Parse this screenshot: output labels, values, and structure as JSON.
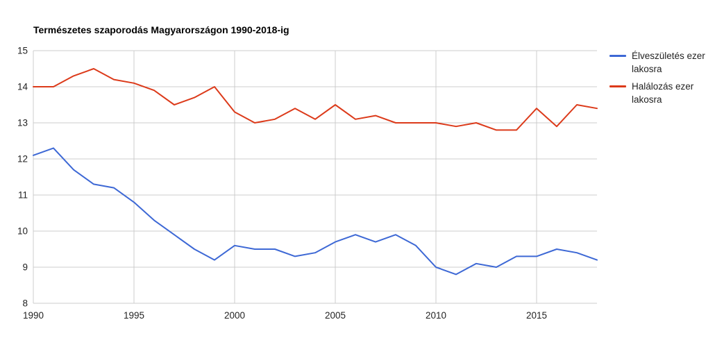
{
  "title": "Természetes szaporodás Magyarországon 1990-2018-ig",
  "colors": {
    "grid": "#cccccc",
    "text": "#222222",
    "title": "#000000",
    "births": "#3d68d5",
    "deaths": "#dc3a1a"
  },
  "legend": {
    "items": [
      {
        "label": "Élveszületés ezer lakosra"
      },
      {
        "label": "Halálozás ezer lakosra"
      }
    ]
  },
  "chart_data": {
    "type": "line",
    "title": "Természetes szaporodás Magyarországon 1990-2018-ig",
    "x": [
      1990,
      1991,
      1992,
      1993,
      1994,
      1995,
      1996,
      1997,
      1998,
      1999,
      2000,
      2001,
      2002,
      2003,
      2004,
      2005,
      2006,
      2007,
      2008,
      2009,
      2010,
      2011,
      2012,
      2013,
      2014,
      2015,
      2016,
      2017,
      2018
    ],
    "series": [
      {
        "name": "Élveszületés ezer lakosra",
        "color": "#3d68d5",
        "values": [
          12.1,
          12.3,
          11.7,
          11.3,
          11.2,
          10.8,
          10.3,
          9.9,
          9.5,
          9.2,
          9.6,
          9.5,
          9.5,
          9.3,
          9.4,
          9.7,
          9.9,
          9.7,
          9.9,
          9.6,
          9.0,
          8.8,
          9.1,
          9.0,
          9.3,
          9.3,
          9.5,
          9.4,
          9.2
        ]
      },
      {
        "name": "Halálozás ezer lakosra",
        "color": "#dc3a1a",
        "values": [
          14.0,
          14.0,
          14.3,
          14.5,
          14.2,
          14.1,
          13.9,
          13.5,
          13.7,
          14.0,
          13.3,
          13.0,
          13.1,
          13.4,
          13.1,
          13.5,
          13.1,
          13.2,
          13.0,
          13.0,
          13.0,
          12.9,
          13.0,
          12.8,
          12.8,
          13.4,
          12.9,
          13.5,
          13.4
        ]
      }
    ],
    "xticks": [
      1990,
      1995,
      2000,
      2005,
      2010,
      2015
    ],
    "yticks": [
      8,
      9,
      10,
      11,
      12,
      13,
      14,
      15
    ],
    "xlim": [
      1990,
      2018
    ],
    "ylim": [
      8,
      15
    ],
    "grid": true,
    "legend_position": "right",
    "xlabel": "",
    "ylabel": ""
  }
}
